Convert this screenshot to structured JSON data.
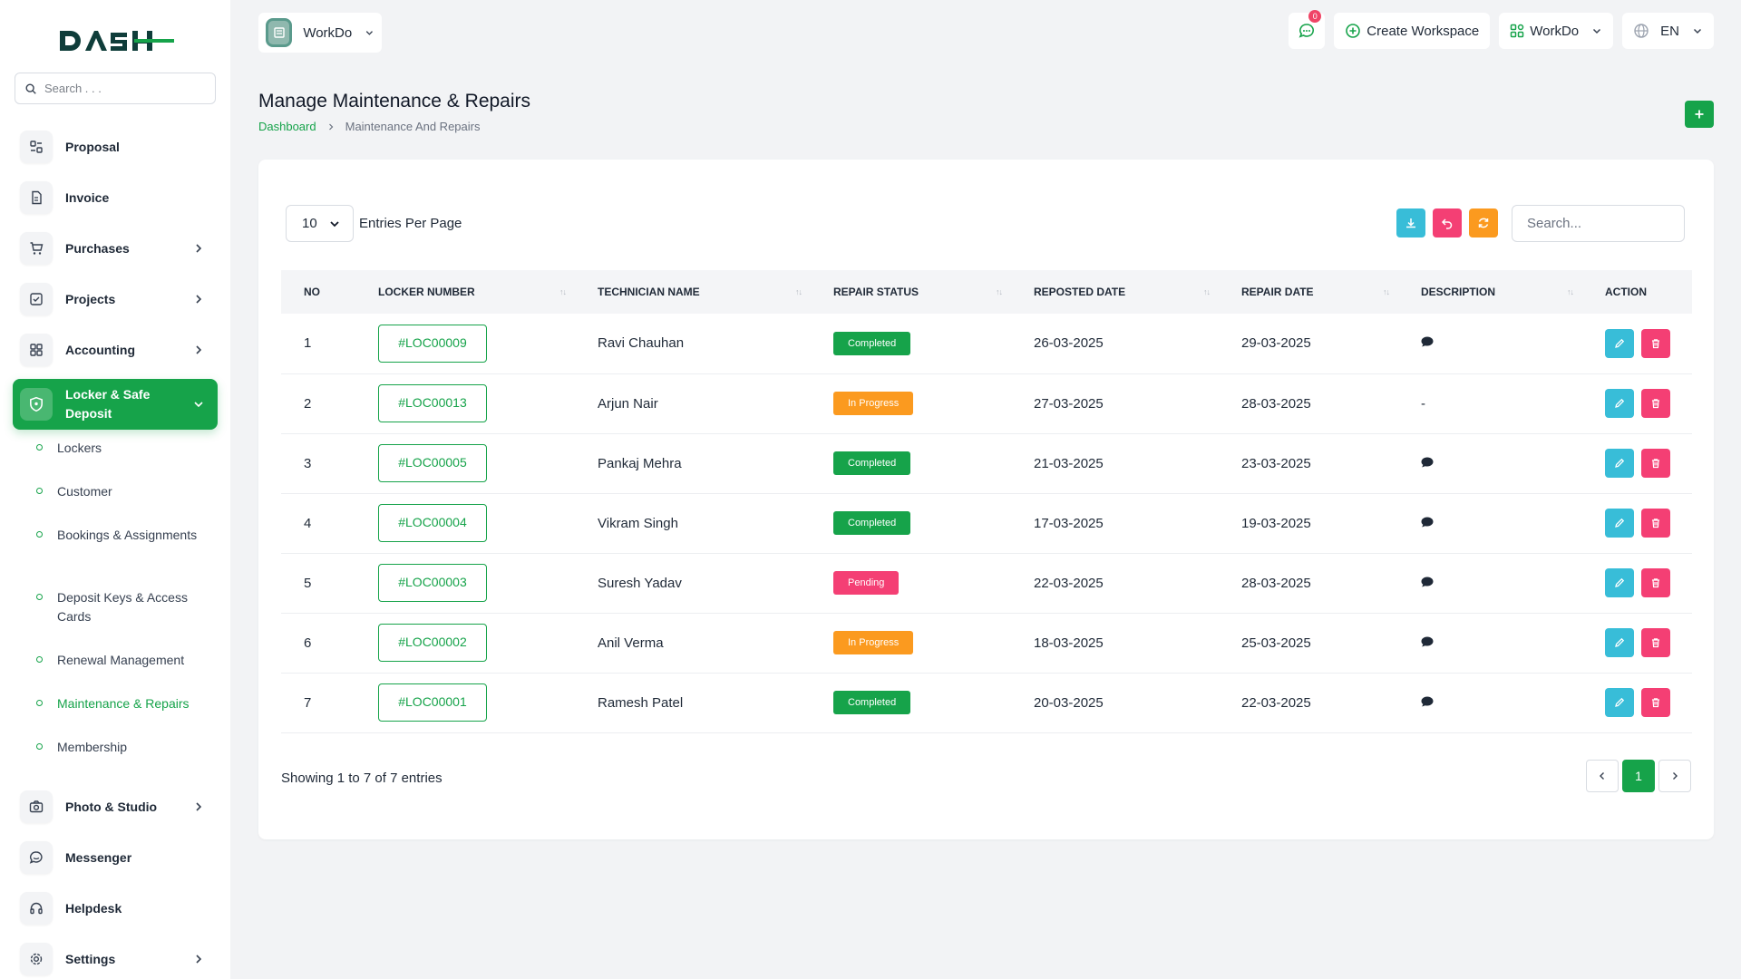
{
  "brand": {
    "logo_text": "DASH"
  },
  "sidebar": {
    "search_placeholder": "Search . . .",
    "items": [
      {
        "label": "Proposal",
        "icon": "proposal-icon",
        "chevron": false
      },
      {
        "label": "Invoice",
        "icon": "invoice-icon",
        "chevron": false
      },
      {
        "label": "Purchases",
        "icon": "cart-icon",
        "chevron": true
      },
      {
        "label": "Projects",
        "icon": "projects-icon",
        "chevron": true
      },
      {
        "label": "Accounting",
        "icon": "accounting-icon",
        "chevron": true
      },
      {
        "label": "Locker & Safe Deposit",
        "icon": "shield-icon",
        "chevron": true,
        "active": true
      }
    ],
    "submenu": [
      {
        "label": "Lockers"
      },
      {
        "label": "Customer"
      },
      {
        "label": "Bookings & Assignments"
      },
      {
        "label": "Deposit Keys & Access Cards"
      },
      {
        "label": "Renewal Management"
      },
      {
        "label": "Maintenance & Repairs",
        "current": true
      },
      {
        "label": "Membership"
      }
    ],
    "items_after": [
      {
        "label": "Photo & Studio",
        "icon": "camera-icon",
        "chevron": true
      },
      {
        "label": "Messenger",
        "icon": "messenger-icon",
        "chevron": false
      },
      {
        "label": "Helpdesk",
        "icon": "headset-icon",
        "chevron": false
      },
      {
        "label": "Settings",
        "icon": "gear-icon",
        "chevron": true
      }
    ]
  },
  "header": {
    "workspace_name": "WorkDo",
    "notification_count": "0",
    "create_workspace_label": "Create Workspace",
    "workspace_switch_label": "WorkDo",
    "language_label": "EN"
  },
  "page": {
    "title": "Manage Maintenance & Repairs",
    "breadcrumb_home": "Dashboard",
    "breadcrumb_current": "Maintenance And Repairs"
  },
  "table_controls": {
    "per_page_value": "10",
    "per_page_label": "Entries Per Page",
    "search_placeholder": "Search..."
  },
  "table": {
    "columns": [
      "NO",
      "LOCKER NUMBER",
      "TECHNICIAN NAME",
      "REPAIR STATUS",
      "REPOSTED DATE",
      "REPAIR DATE",
      "DESCRIPTION",
      "ACTION"
    ],
    "rows": [
      {
        "no": "1",
        "locker": "#LOC00009",
        "technician": "Ravi Chauhan",
        "status": "Completed",
        "reposted": "26-03-2025",
        "repair": "29-03-2025",
        "description": "icon"
      },
      {
        "no": "2",
        "locker": "#LOC00013",
        "technician": "Arjun Nair",
        "status": "In Progress",
        "reposted": "27-03-2025",
        "repair": "28-03-2025",
        "description": "-"
      },
      {
        "no": "3",
        "locker": "#LOC00005",
        "technician": "Pankaj Mehra",
        "status": "Completed",
        "reposted": "21-03-2025",
        "repair": "23-03-2025",
        "description": "icon"
      },
      {
        "no": "4",
        "locker": "#LOC00004",
        "technician": "Vikram Singh",
        "status": "Completed",
        "reposted": "17-03-2025",
        "repair": "19-03-2025",
        "description": "icon"
      },
      {
        "no": "5",
        "locker": "#LOC00003",
        "technician": "Suresh Yadav",
        "status": "Pending",
        "reposted": "22-03-2025",
        "repair": "28-03-2025",
        "description": "icon"
      },
      {
        "no": "6",
        "locker": "#LOC00002",
        "technician": "Anil Verma",
        "status": "In Progress",
        "reposted": "18-03-2025",
        "repair": "25-03-2025",
        "description": "icon"
      },
      {
        "no": "7",
        "locker": "#LOC00001",
        "technician": "Ramesh Patel",
        "status": "Completed",
        "reposted": "20-03-2025",
        "repair": "22-03-2025",
        "description": "icon"
      }
    ]
  },
  "status_colors": {
    "Completed": "#16a34a",
    "In Progress": "#fb9a1f",
    "Pending": "#f43f74"
  },
  "footer": {
    "showing_text": "Showing 1 to 7 of 7 entries",
    "current_page": "1"
  }
}
